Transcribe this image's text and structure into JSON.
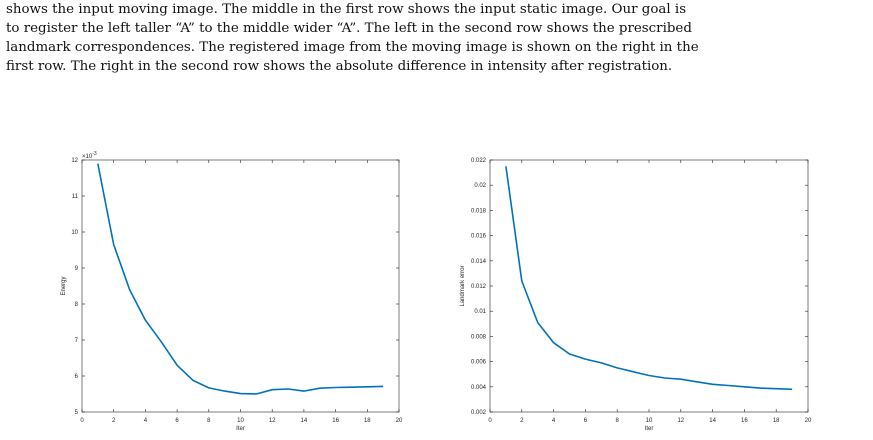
{
  "caption": {
    "lines": [
      "shows the input moving image. The middle in the first row shows the input static image. Our goal is",
      "to register the left taller “A” to the middle wider “A”. The left in the second row shows the prescribed",
      "landmark correspondences. The registered image from the moving image is shown on the right in the",
      "first row. The right in the second row shows the absolute difference in intensity after registration."
    ]
  },
  "chart_data": [
    {
      "type": "line",
      "title": "",
      "xlabel": "Iter",
      "ylabel": "Energy",
      "exponent_label": "×10",
      "exponent_power": "-3",
      "xlim": [
        0,
        20
      ],
      "ylim": [
        5,
        12
      ],
      "xticks": [
        0,
        2,
        4,
        6,
        8,
        10,
        12,
        14,
        16,
        18,
        20
      ],
      "yticks": [
        5,
        6,
        7,
        8,
        9,
        10,
        11,
        12
      ],
      "ytick_labels": [
        "5",
        "6",
        "7",
        "8",
        "9",
        "10",
        "11",
        "12"
      ],
      "color": "#0072bd",
      "x": [
        1,
        2,
        3,
        4,
        5,
        6,
        7,
        8,
        9,
        10,
        11,
        12,
        13,
        14,
        15,
        16,
        17,
        18,
        19
      ],
      "y": [
        11.9,
        9.65,
        8.4,
        7.55,
        6.95,
        6.3,
        5.88,
        5.67,
        5.58,
        5.51,
        5.5,
        5.62,
        5.64,
        5.58,
        5.66,
        5.68,
        5.69,
        5.7,
        5.71
      ]
    },
    {
      "type": "line",
      "title": "",
      "xlabel": "Iter",
      "ylabel": "Landmark error",
      "xlim": [
        0,
        20
      ],
      "ylim": [
        0.002,
        0.022
      ],
      "xticks": [
        0,
        2,
        4,
        6,
        8,
        10,
        12,
        14,
        16,
        18,
        20
      ],
      "yticks": [
        0.002,
        0.004,
        0.006,
        0.008,
        0.01,
        0.012,
        0.014,
        0.016,
        0.018,
        0.02,
        0.022
      ],
      "ytick_labels": [
        "0.002",
        "0.004",
        "0.006",
        "0.008",
        "0.01",
        "0.012",
        "0.014",
        "0.016",
        "0.018",
        "0.02",
        "0.022"
      ],
      "color": "#0072bd",
      "x": [
        1,
        2,
        3,
        4,
        5,
        6,
        7,
        8,
        9,
        10,
        11,
        12,
        13,
        14,
        15,
        16,
        17,
        18,
        19
      ],
      "y": [
        0.0215,
        0.0124,
        0.0091,
        0.0075,
        0.0066,
        0.0062,
        0.0059,
        0.0055,
        0.0052,
        0.0049,
        0.0047,
        0.0046,
        0.0044,
        0.0042,
        0.0041,
        0.004,
        0.0039,
        0.00385,
        0.0038
      ]
    }
  ]
}
